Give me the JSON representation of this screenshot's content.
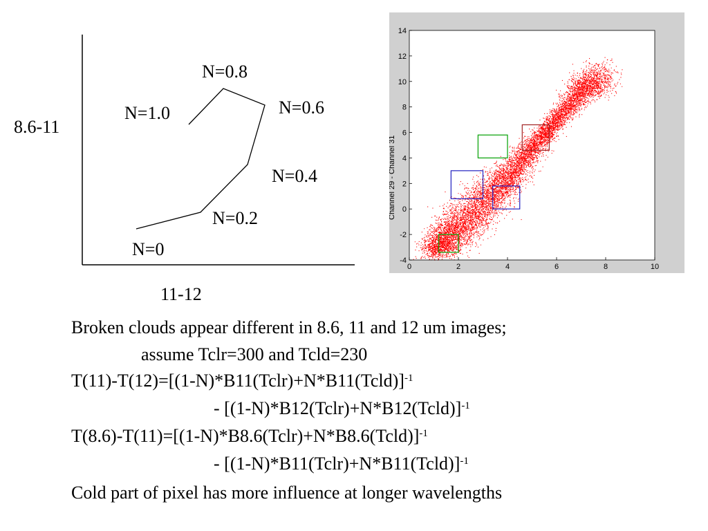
{
  "diagram": {
    "x_axis_label": "11-12",
    "y_axis_label": "8.6-11",
    "points": [
      {
        "label": "N=1.0"
      },
      {
        "label": "N=0.8"
      },
      {
        "label": "N=0.6"
      },
      {
        "label": "N=0.4"
      },
      {
        "label": "N=0.2"
      },
      {
        "label": "N=0"
      }
    ]
  },
  "chart_data": {
    "type": "scatter",
    "title": "",
    "xlabel": "",
    "ylabel": "Channel 29 - Channel 31",
    "xlim": [
      0,
      10
    ],
    "ylim": [
      -4,
      14
    ],
    "x_ticks": [
      "0",
      "2",
      "4",
      "6",
      "8",
      "10"
    ],
    "y_ticks": [
      "-4",
      "-2",
      "0",
      "2",
      "4",
      "6",
      "8",
      "10",
      "12",
      "14"
    ],
    "grid": false,
    "point_color": "#ff0000",
    "frame_color": "#d0d0d0",
    "cloud": {
      "description_points": [
        [
          1.0,
          -3.2
        ],
        [
          2.0,
          -1.5
        ],
        [
          3.0,
          0.5
        ],
        [
          4.0,
          2.5
        ],
        [
          5.0,
          4.8
        ],
        [
          6.0,
          7.0
        ],
        [
          7.0,
          9.3
        ],
        [
          7.8,
          10.5
        ]
      ],
      "point_count": 9000
    },
    "boxes": [
      {
        "x0": 1.2,
        "x1": 2.0,
        "y0": -3.4,
        "y1": -2.0,
        "color": "#00a000"
      },
      {
        "x0": 1.7,
        "x1": 3.0,
        "y0": 0.8,
        "y1": 3.0,
        "color": "#2020c0"
      },
      {
        "x0": 3.4,
        "x1": 4.5,
        "y0": 0.0,
        "y1": 1.8,
        "color": "#2020c0"
      },
      {
        "x0": 2.8,
        "x1": 4.0,
        "y0": 4.0,
        "y1": 5.8,
        "color": "#00a000"
      },
      {
        "x0": 4.6,
        "x1": 5.7,
        "y0": 4.6,
        "y1": 6.6,
        "color": "#a02020"
      }
    ]
  },
  "text": {
    "line1": "Broken clouds appear different in 8.6, 11 and 12 um images;",
    "line2": "assume Tclr=300 and Tcld=230",
    "line3": "T(11)-T(12)=[(1-N)*B11(Tclr)+N*B11(Tcld)]",
    "line4": "- [(1-N)*B12(Tclr)+N*B12(Tcld)]",
    "line5": "T(8.6)-T(11)=[(1-N)*B8.6(Tclr)+N*B8.6(Tcld)]",
    "line6": "- [(1-N)*B11(Tclr)+N*B11(Tcld)]",
    "line7": "Cold part of pixel has more influence at longer wavelengths",
    "exponent": "-1"
  }
}
